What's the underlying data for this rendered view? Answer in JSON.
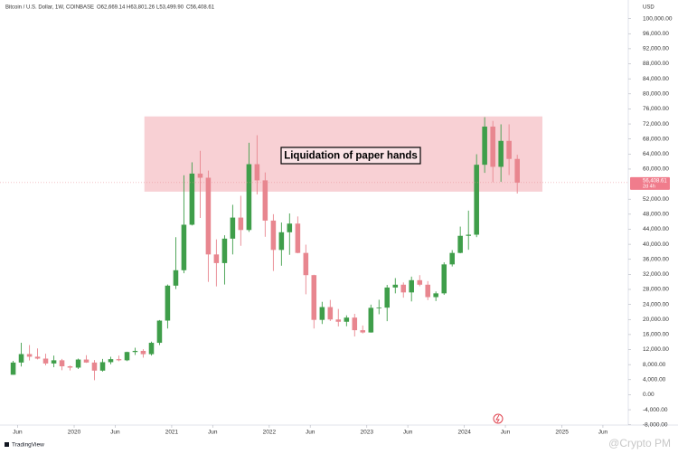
{
  "chart_data": {
    "type": "candlestick",
    "header": {
      "symbol": "Bitcoin / U.S. Dollar, 1W, COINBASE",
      "open": "O62,669.14",
      "high": "H63,801.26",
      "low": "L53,499.90",
      "close": "C56,408.61"
    },
    "currency": "USD",
    "annotation": "Liquidation of paper hands",
    "zone": {
      "x": [
        2020.72,
        2024.8
      ],
      "y": [
        54000,
        74000
      ],
      "color": "#f8d0d4"
    },
    "price_label": {
      "value": 56408.61,
      "label": "56,408.61"
    },
    "countdown": "2d 4h",
    "footer": "TradingView",
    "watermark": "@Crypto PM",
    "up_color": "#3f9e4a",
    "down_color": "#e8868f",
    "x": [
      2019.375,
      2019.458,
      2019.542,
      2019.625,
      2019.708,
      2019.792,
      2019.875,
      2019.958,
      2020.042,
      2020.125,
      2020.208,
      2020.292,
      2020.375,
      2020.458,
      2020.542,
      2020.625,
      2020.708,
      2020.792,
      2020.875,
      2020.958,
      2021.042,
      2021.125,
      2021.208,
      2021.292,
      2021.375,
      2021.458,
      2021.542,
      2021.625,
      2021.708,
      2021.792,
      2021.875,
      2021.958,
      2022.042,
      2022.125,
      2022.208,
      2022.292,
      2022.375,
      2022.458,
      2022.542,
      2022.625,
      2022.708,
      2022.792,
      2022.875,
      2022.958,
      2023.042,
      2023.125,
      2023.208,
      2023.292,
      2023.375,
      2023.458,
      2023.542,
      2023.625,
      2023.708,
      2023.792,
      2023.875,
      2023.958,
      2024.042,
      2024.125,
      2024.208,
      2024.292,
      2024.375,
      2024.458,
      2024.542
    ],
    "open": [
      5300,
      8550,
      10800,
      10100,
      9600,
      8300,
      9150,
      7550,
      7200,
      9350,
      8550,
      6400,
      8650,
      9450,
      9150,
      11350,
      11650,
      10780,
      13800,
      19700,
      29000,
      33100,
      45200,
      58800,
      57700,
      37300,
      35000,
      41500,
      47100,
      43800,
      61300,
      57000,
      46300,
      38500,
      43200,
      45500,
      37700,
      31800,
      19900,
      23300,
      20000,
      19400,
      20500,
      17150,
      16550,
      23100,
      23150,
      28500,
      29250,
      27200,
      30450,
      29250,
      25950,
      26950,
      34650,
      37700,
      42250,
      42550,
      61150,
      71300,
      60600,
      67500,
      62700
    ],
    "high": [
      9000,
      13800,
      13200,
      12300,
      10900,
      10400,
      9500,
      7750,
      9600,
      10500,
      9200,
      9500,
      10080,
      10400,
      11450,
      12480,
      12100,
      14100,
      19850,
      29300,
      41900,
      58350,
      61800,
      64850,
      59600,
      41300,
      42400,
      50500,
      52900,
      67000,
      69000,
      59100,
      48000,
      45800,
      48200,
      47400,
      39900,
      31900,
      24700,
      25200,
      22800,
      21100,
      21500,
      18400,
      23950,
      25250,
      29200,
      31000,
      29850,
      31400,
      31800,
      30200,
      27450,
      35200,
      38450,
      44700,
      48950,
      63950,
      73800,
      72800,
      71900,
      71900,
      63800
    ],
    "low": [
      5300,
      7500,
      9100,
      9400,
      7800,
      7300,
      6500,
      6430,
      6850,
      8450,
      3850,
      6150,
      8100,
      8900,
      8950,
      10550,
      9850,
      10400,
      13200,
      17600,
      28100,
      32300,
      45000,
      47000,
      30000,
      28800,
      29300,
      37300,
      39600,
      43300,
      53250,
      42000,
      32900,
      34300,
      37200,
      37600,
      26700,
      17600,
      18800,
      19600,
      18150,
      18200,
      15480,
      16300,
      16500,
      21400,
      19550,
      26950,
      25800,
      24800,
      28850,
      25150,
      24900,
      26550,
      34100,
      37600,
      38550,
      41900,
      59000,
      56500,
      56600,
      58400,
      53500
    ],
    "close": [
      8550,
      10800,
      10100,
      9600,
      8300,
      9150,
      7550,
      7200,
      9350,
      8550,
      6400,
      8650,
      9450,
      9150,
      11350,
      11650,
      10780,
      13800,
      19700,
      29000,
      33100,
      45200,
      58800,
      57700,
      37300,
      35000,
      41500,
      47100,
      43800,
      61300,
      57000,
      46300,
      38500,
      43200,
      45500,
      37700,
      31800,
      19900,
      23300,
      20000,
      19400,
      20500,
      17150,
      16550,
      23100,
      23150,
      28500,
      29250,
      27200,
      30450,
      29250,
      25950,
      26950,
      34650,
      37700,
      42250,
      42550,
      61150,
      71300,
      60600,
      67500,
      62700,
      56400
    ],
    "xlim": [
      2019.24,
      2025.68
    ],
    "ylim": [
      -10000,
      104000
    ],
    "xticks": [
      {
        "value": 2019.42,
        "label": "Jun"
      },
      {
        "value": 2020,
        "label": "2020"
      },
      {
        "value": 2020.42,
        "label": "Jun"
      },
      {
        "value": 2021,
        "label": "2021"
      },
      {
        "value": 2021.42,
        "label": "Jun"
      },
      {
        "value": 2022,
        "label": "2022"
      },
      {
        "value": 2022.42,
        "label": "Jun"
      },
      {
        "value": 2023,
        "label": "2023"
      },
      {
        "value": 2023.42,
        "label": "Jun"
      },
      {
        "value": 2024,
        "label": "2024"
      },
      {
        "value": 2024.42,
        "label": "Jun"
      },
      {
        "value": 2025,
        "label": "2025"
      },
      {
        "value": 2025.42,
        "label": "Jun"
      }
    ],
    "yticks": [
      {
        "value": 100000,
        "label": "100,000.00"
      },
      {
        "value": 96000,
        "label": "96,000.00"
      },
      {
        "value": 92000,
        "label": "92,000.00"
      },
      {
        "value": 88000,
        "label": "88,000.00"
      },
      {
        "value": 84000,
        "label": "84,000.00"
      },
      {
        "value": 80000,
        "label": "80,000.00"
      },
      {
        "value": 76000,
        "label": "76,000.00"
      },
      {
        "value": 72000,
        "label": "72,000.00"
      },
      {
        "value": 68000,
        "label": "68,000.00"
      },
      {
        "value": 64000,
        "label": "64,000.00"
      },
      {
        "value": 60000,
        "label": "60,000.00"
      },
      {
        "value": 52000,
        "label": "52,000.00"
      },
      {
        "value": 48000,
        "label": "48,000.00"
      },
      {
        "value": 44000,
        "label": "44,000.00"
      },
      {
        "value": 40000,
        "label": "40,000.00"
      },
      {
        "value": 36000,
        "label": "36,000.00"
      },
      {
        "value": 32000,
        "label": "32,000.00"
      },
      {
        "value": 28000,
        "label": "28,000.00"
      },
      {
        "value": 24000,
        "label": "24,000.00"
      },
      {
        "value": 20000,
        "label": "20,000.00"
      },
      {
        "value": 16000,
        "label": "16,000.00"
      },
      {
        "value": 12000,
        "label": "12,000.00"
      },
      {
        "value": 8000,
        "label": "8,000.00"
      },
      {
        "value": 4000,
        "label": "4,000.00"
      },
      {
        "value": 0,
        "label": "0.00"
      },
      {
        "value": -4000,
        "label": "-4,000.00"
      },
      {
        "value": -8000,
        "label": "-8,000.00"
      }
    ],
    "grid": false
  }
}
